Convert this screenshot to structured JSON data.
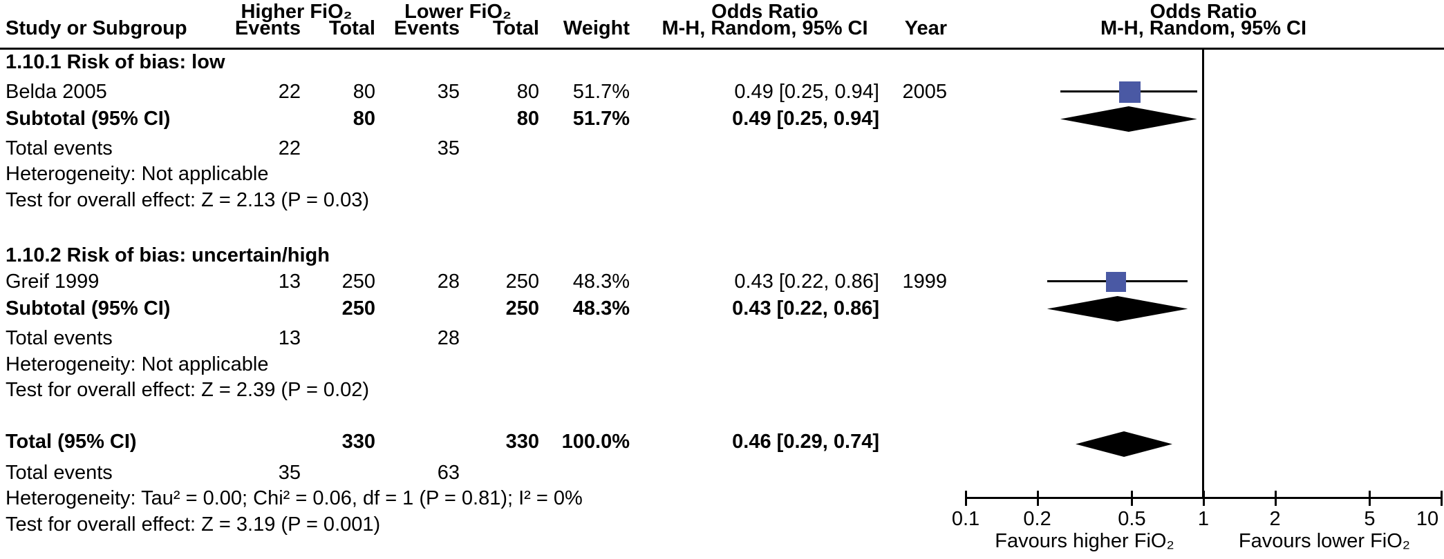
{
  "header": {
    "group_higher": "Higher FiO₂",
    "group_lower": "Lower FiO₂",
    "odds_ratio_left": "Odds Ratio",
    "odds_ratio_right": "Odds Ratio",
    "col_study": "Study or Subgroup",
    "col_events_1": "Events",
    "col_total_1": "Total",
    "col_events_2": "Events",
    "col_total_2": "Total",
    "col_weight": "Weight",
    "col_ci": "M-H, Random, 95% CI",
    "col_year": "Year",
    "col_ci_right": "M-H, Random, 95% CI"
  },
  "rows": [
    {
      "study": "1.10.1 Risk of bias: low"
    },
    {
      "study": "Belda 2005",
      "ev1": "22",
      "tot1": "80",
      "ev2": "35",
      "tot2": "80",
      "weight": "51.7%",
      "or": "0.49 [0.25, 0.94]",
      "year": "2005"
    },
    {
      "study": "Subtotal (95% CI)",
      "tot1": "80",
      "tot2": "80",
      "weight": "51.7%",
      "or": "0.49 [0.25, 0.94]"
    },
    {
      "study": "Total events",
      "ev1": "22",
      "ev2": "35"
    },
    {
      "study": "Heterogeneity: Not applicable"
    },
    {
      "study": "Test for overall effect: Z = 2.13 (P = 0.03)"
    },
    {
      "study": "1.10.2 Risk of bias: uncertain/high"
    },
    {
      "study": "Greif 1999",
      "ev1": "13",
      "tot1": "250",
      "ev2": "28",
      "tot2": "250",
      "weight": "48.3%",
      "or": "0.43 [0.22, 0.86]",
      "year": "1999"
    },
    {
      "study": "Subtotal (95% CI)",
      "tot1": "250",
      "tot2": "250",
      "weight": "48.3%",
      "or": "0.43 [0.22, 0.86]"
    },
    {
      "study": "Total events",
      "ev1": "13",
      "ev2": "28"
    },
    {
      "study": "Heterogeneity: Not applicable"
    },
    {
      "study": "Test for overall effect: Z = 2.39 (P = 0.02)"
    },
    {
      "study": "Total (95% CI)",
      "tot1": "330",
      "tot2": "330",
      "weight": "100.0%",
      "or": "0.46 [0.29, 0.74]"
    },
    {
      "study": "Total events",
      "ev1": "35",
      "ev2": "63"
    },
    {
      "study": "Heterogeneity: Tau² = 0.00; Chi² = 0.06, df = 1 (P = 0.81); I² = 0%"
    },
    {
      "study": "Test for overall effect: Z = 3.19 (P = 0.001)"
    }
  ],
  "axis": {
    "favours_left": "Favours higher FiO₂",
    "favours_right": "Favours lower FiO₂"
  },
  "chart_data": {
    "type": "forest",
    "effect_measure": "Odds Ratio",
    "method": "M-H, Random, 95% CI",
    "x_scale": "log",
    "x_ticks": [
      0.1,
      0.2,
      0.5,
      1,
      2,
      5,
      10
    ],
    "x_tick_labels": [
      "0.1",
      "0.2",
      "0.5",
      "1",
      "2",
      "5",
      "10"
    ],
    "xlim": [
      0.1,
      10
    ],
    "square_color": "#4a59a4",
    "diamond_color": "#000000",
    "line_color": "#000000",
    "subgroups": [
      {
        "name": "1.10.1 Risk of bias: low",
        "studies": [
          {
            "study": "Belda 2005",
            "events_higher": 22,
            "total_higher": 80,
            "events_lower": 35,
            "total_lower": 80,
            "weight_pct": 51.7,
            "or": 0.49,
            "ci_low": 0.25,
            "ci_high": 0.94,
            "year": 2005
          }
        ],
        "subtotal": {
          "total_higher": 80,
          "total_lower": 80,
          "weight_pct": 51.7,
          "or": 0.49,
          "ci_low": 0.25,
          "ci_high": 0.94
        },
        "total_events_higher": 22,
        "total_events_lower": 35,
        "heterogeneity": "Not applicable",
        "overall_effect": "Z = 2.13 (P = 0.03)"
      },
      {
        "name": "1.10.2 Risk of bias: uncertain/high",
        "studies": [
          {
            "study": "Greif 1999",
            "events_higher": 13,
            "total_higher": 250,
            "events_lower": 28,
            "total_lower": 250,
            "weight_pct": 48.3,
            "or": 0.43,
            "ci_low": 0.22,
            "ci_high": 0.86,
            "year": 1999
          }
        ],
        "subtotal": {
          "total_higher": 250,
          "total_lower": 250,
          "weight_pct": 48.3,
          "or": 0.43,
          "ci_low": 0.22,
          "ci_high": 0.86
        },
        "total_events_higher": 13,
        "total_events_lower": 28,
        "heterogeneity": "Not applicable",
        "overall_effect": "Z = 2.39 (P = 0.02)"
      }
    ],
    "total": {
      "total_higher": 330,
      "total_lower": 330,
      "weight_pct": 100.0,
      "or": 0.46,
      "ci_low": 0.29,
      "ci_high": 0.74,
      "total_events_higher": 35,
      "total_events_lower": 63,
      "heterogeneity": "Tau² = 0.00; Chi² = 0.06, df = 1 (P = 0.81); I² = 0%",
      "overall_effect": "Z = 3.19 (P = 0.001)"
    },
    "markers": [
      {
        "kind": "square",
        "or": 0.49,
        "lo": 0.25,
        "hi": 0.94,
        "weight_pct": 51.7
      },
      {
        "kind": "diamond",
        "or": 0.49,
        "lo": 0.25,
        "hi": 0.94
      },
      {
        "kind": "square",
        "or": 0.43,
        "lo": 0.22,
        "hi": 0.86,
        "weight_pct": 48.3
      },
      {
        "kind": "diamond",
        "or": 0.43,
        "lo": 0.22,
        "hi": 0.86
      },
      {
        "kind": "diamond",
        "or": 0.46,
        "lo": 0.29,
        "hi": 0.74
      }
    ]
  }
}
